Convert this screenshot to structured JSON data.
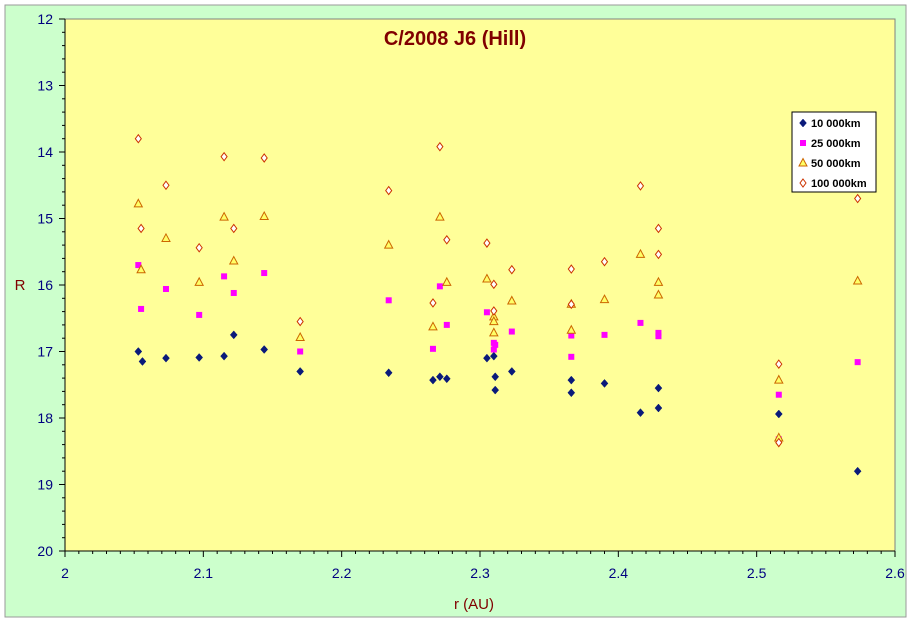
{
  "chart_data": {
    "type": "scatter",
    "title": "C/2008 J6 (Hill)",
    "xlabel": "r (AU)",
    "ylabel": "R",
    "xlim": [
      2,
      2.6
    ],
    "ylim": [
      12,
      20
    ],
    "y_inverted": true,
    "xticks": [
      "2",
      "2.1",
      "2.2",
      "2.3",
      "2.4",
      "2.5",
      "2.6"
    ],
    "yticks": [
      "12",
      "13",
      "14",
      "15",
      "16",
      "17",
      "18",
      "19",
      "20"
    ],
    "grid": "none",
    "legend_position": "top-right",
    "series": [
      {
        "name": "10 000km",
        "marker": "diamond",
        "color": "#0a1a7a",
        "points": [
          [
            2.053,
            17.0
          ],
          [
            2.056,
            17.15
          ],
          [
            2.073,
            17.1
          ],
          [
            2.097,
            17.09
          ],
          [
            2.115,
            17.07
          ],
          [
            2.122,
            16.75
          ],
          [
            2.144,
            16.97
          ],
          [
            2.17,
            17.3
          ],
          [
            2.234,
            17.32
          ],
          [
            2.266,
            17.43
          ],
          [
            2.271,
            17.38
          ],
          [
            2.276,
            17.41
          ],
          [
            2.305,
            17.1
          ],
          [
            2.31,
            17.07
          ],
          [
            2.311,
            17.38
          ],
          [
            2.311,
            17.58
          ],
          [
            2.323,
            17.3
          ],
          [
            2.366,
            17.43
          ],
          [
            2.366,
            17.62
          ],
          [
            2.39,
            17.48
          ],
          [
            2.416,
            17.92
          ],
          [
            2.429,
            17.55
          ],
          [
            2.429,
            17.85
          ],
          [
            2.516,
            17.94
          ],
          [
            2.516,
            18.32
          ],
          [
            2.573,
            18.8
          ]
        ]
      },
      {
        "name": "25 000km",
        "marker": "square",
        "color": "#ff00ff",
        "points": [
          [
            2.053,
            15.7
          ],
          [
            2.055,
            16.36
          ],
          [
            2.073,
            16.06
          ],
          [
            2.097,
            16.45
          ],
          [
            2.115,
            15.87
          ],
          [
            2.122,
            16.12
          ],
          [
            2.144,
            15.82
          ],
          [
            2.17,
            17.0
          ],
          [
            2.234,
            16.23
          ],
          [
            2.266,
            16.96
          ],
          [
            2.271,
            16.02
          ],
          [
            2.276,
            16.6
          ],
          [
            2.305,
            16.41
          ],
          [
            2.31,
            16.87
          ],
          [
            2.31,
            16.97
          ],
          [
            2.311,
            16.9
          ],
          [
            2.323,
            16.7
          ],
          [
            2.366,
            16.76
          ],
          [
            2.366,
            17.08
          ],
          [
            2.39,
            16.75
          ],
          [
            2.416,
            16.57
          ],
          [
            2.429,
            16.72
          ],
          [
            2.429,
            16.77
          ],
          [
            2.516,
            17.65
          ],
          [
            2.516,
            18.32
          ],
          [
            2.573,
            17.16
          ]
        ]
      },
      {
        "name": "50 000km",
        "marker": "triangle",
        "color": "#cc6600",
        "points": [
          [
            2.053,
            14.78
          ],
          [
            2.055,
            15.77
          ],
          [
            2.073,
            15.3
          ],
          [
            2.097,
            15.96
          ],
          [
            2.115,
            14.98
          ],
          [
            2.122,
            15.64
          ],
          [
            2.144,
            14.97
          ],
          [
            2.17,
            16.79
          ],
          [
            2.234,
            15.4
          ],
          [
            2.266,
            16.63
          ],
          [
            2.271,
            14.98
          ],
          [
            2.276,
            15.96
          ],
          [
            2.305,
            15.91
          ],
          [
            2.31,
            16.48
          ],
          [
            2.31,
            16.55
          ],
          [
            2.31,
            16.72
          ],
          [
            2.323,
            16.24
          ],
          [
            2.366,
            16.29
          ],
          [
            2.366,
            16.68
          ],
          [
            2.39,
            16.22
          ],
          [
            2.416,
            15.54
          ],
          [
            2.429,
            15.96
          ],
          [
            2.429,
            16.15
          ],
          [
            2.516,
            17.43
          ],
          [
            2.516,
            18.3
          ],
          [
            2.573,
            15.94
          ]
        ]
      },
      {
        "name": "100 000km",
        "marker": "diamond-open",
        "color": "#cc3300",
        "points": [
          [
            2.053,
            13.8
          ],
          [
            2.055,
            15.15
          ],
          [
            2.073,
            14.5
          ],
          [
            2.097,
            15.44
          ],
          [
            2.115,
            14.07
          ],
          [
            2.122,
            15.15
          ],
          [
            2.144,
            14.09
          ],
          [
            2.17,
            16.55
          ],
          [
            2.234,
            14.58
          ],
          [
            2.266,
            16.27
          ],
          [
            2.271,
            13.92
          ],
          [
            2.276,
            15.32
          ],
          [
            2.305,
            15.37
          ],
          [
            2.31,
            15.99
          ],
          [
            2.31,
            16.39
          ],
          [
            2.323,
            15.77
          ],
          [
            2.366,
            15.76
          ],
          [
            2.366,
            16.29
          ],
          [
            2.39,
            15.65
          ],
          [
            2.416,
            14.51
          ],
          [
            2.429,
            15.15
          ],
          [
            2.429,
            15.54
          ],
          [
            2.516,
            17.19
          ],
          [
            2.516,
            18.37
          ],
          [
            2.573,
            14.7
          ]
        ]
      }
    ]
  },
  "colors": {
    "outer_background": "#ccffcc",
    "plot_background": "#ffff99",
    "title_color": "#800000",
    "axis_label_color": "#800000",
    "tick_label_color": "#000080"
  }
}
